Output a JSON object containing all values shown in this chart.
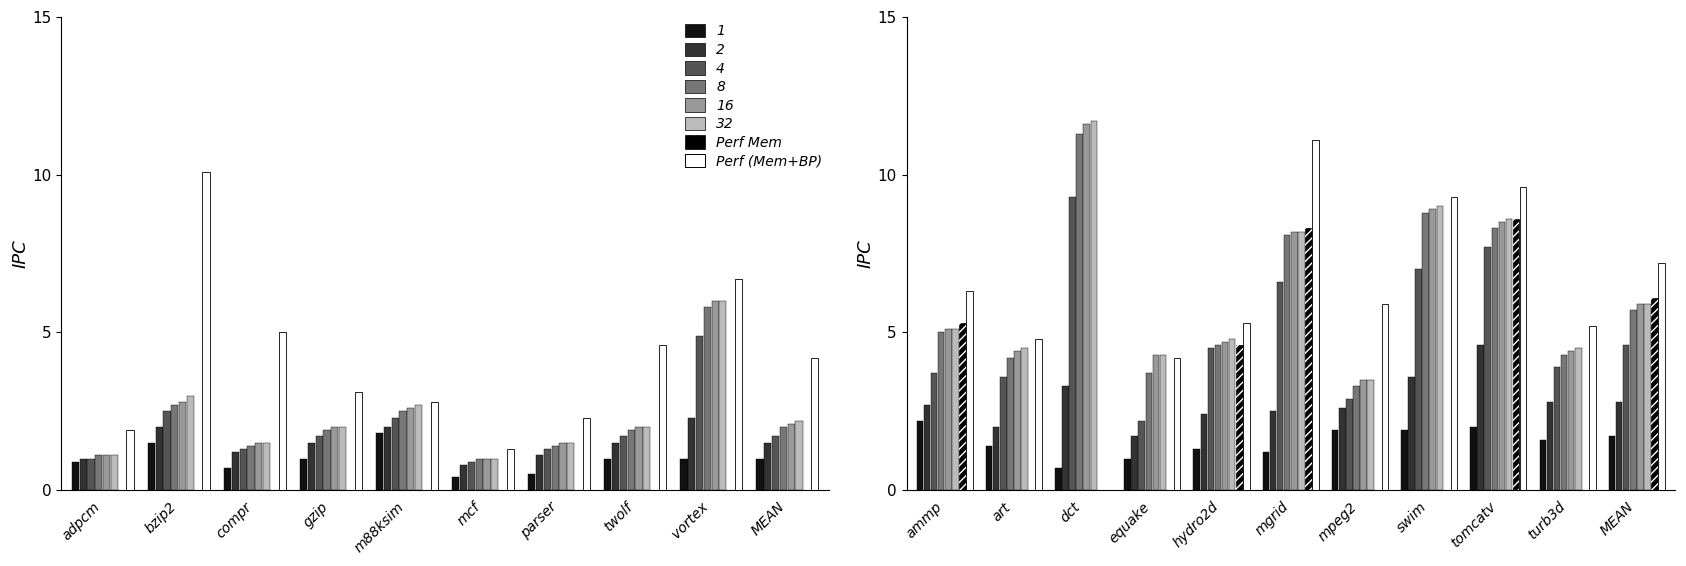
{
  "left_categories": [
    "adpcm",
    "bzip2",
    "compr",
    "gzip",
    "m88ksim",
    "mcf",
    "parser",
    "twolf",
    "vortex",
    "MEAN"
  ],
  "right_categories": [
    "ammp",
    "art",
    "dct",
    "equake",
    "hydro2d",
    "mgrid",
    "mpeg2",
    "swim",
    "tomcatv",
    "turb3d",
    "MEAN"
  ],
  "series_colors": [
    "#111111",
    "#333333",
    "#555555",
    "#777777",
    "#999999",
    "#bbbbbb"
  ],
  "left_data": {
    "s1": [
      0.9,
      1.5,
      0.7,
      1.0,
      1.8,
      0.4,
      0.5,
      1.0,
      1.0,
      1.0
    ],
    "s2": [
      1.0,
      2.0,
      1.2,
      1.5,
      2.0,
      0.8,
      1.1,
      1.5,
      2.3,
      1.5
    ],
    "s4": [
      1.0,
      2.5,
      1.3,
      1.7,
      2.3,
      0.9,
      1.3,
      1.7,
      4.9,
      1.7
    ],
    "s8": [
      1.1,
      2.7,
      1.4,
      1.9,
      2.5,
      1.0,
      1.4,
      1.9,
      5.8,
      2.0
    ],
    "s16": [
      1.1,
      2.8,
      1.5,
      2.0,
      2.6,
      1.0,
      1.5,
      2.0,
      6.0,
      2.1
    ],
    "s32": [
      1.1,
      3.0,
      1.5,
      2.0,
      2.7,
      1.0,
      1.5,
      2.0,
      6.0,
      2.2
    ],
    "pm": [
      null,
      null,
      null,
      null,
      null,
      null,
      null,
      null,
      null,
      null
    ],
    "pmbp": [
      1.9,
      10.1,
      5.0,
      3.1,
      2.8,
      1.3,
      2.3,
      4.6,
      6.7,
      4.2
    ]
  },
  "right_data": {
    "s1": [
      2.2,
      1.4,
      0.7,
      1.0,
      1.3,
      1.2,
      1.9,
      1.9,
      2.0,
      1.6,
      1.7
    ],
    "s2": [
      2.7,
      2.0,
      3.3,
      1.7,
      2.4,
      2.5,
      2.6,
      3.6,
      4.6,
      2.8,
      2.8
    ],
    "s4": [
      3.7,
      3.6,
      9.3,
      2.2,
      4.5,
      6.6,
      2.9,
      7.0,
      7.7,
      3.9,
      4.6
    ],
    "s8": [
      5.0,
      4.2,
      11.3,
      3.7,
      4.6,
      8.1,
      3.3,
      8.8,
      8.3,
      4.3,
      5.7
    ],
    "s16": [
      5.1,
      4.4,
      11.6,
      4.3,
      4.7,
      8.2,
      3.5,
      8.9,
      8.5,
      4.4,
      5.9
    ],
    "s32": [
      5.1,
      4.5,
      11.7,
      4.3,
      4.8,
      8.2,
      3.5,
      9.0,
      8.6,
      4.5,
      5.9
    ],
    "pm": [
      5.3,
      null,
      null,
      null,
      4.6,
      8.3,
      null,
      null,
      8.6,
      null,
      6.1
    ],
    "pmbp": [
      6.3,
      4.8,
      null,
      4.2,
      5.3,
      11.1,
      5.9,
      9.3,
      9.6,
      5.2,
      7.2
    ]
  },
  "ylim": [
    0,
    15
  ],
  "yticks": [
    0,
    5,
    10,
    15
  ],
  "ylabel": "IPC",
  "legend_labels": [
    "1",
    "2",
    "4",
    "8",
    "16",
    "32",
    "Perf Mem",
    "Perf (Mem+BP)"
  ]
}
